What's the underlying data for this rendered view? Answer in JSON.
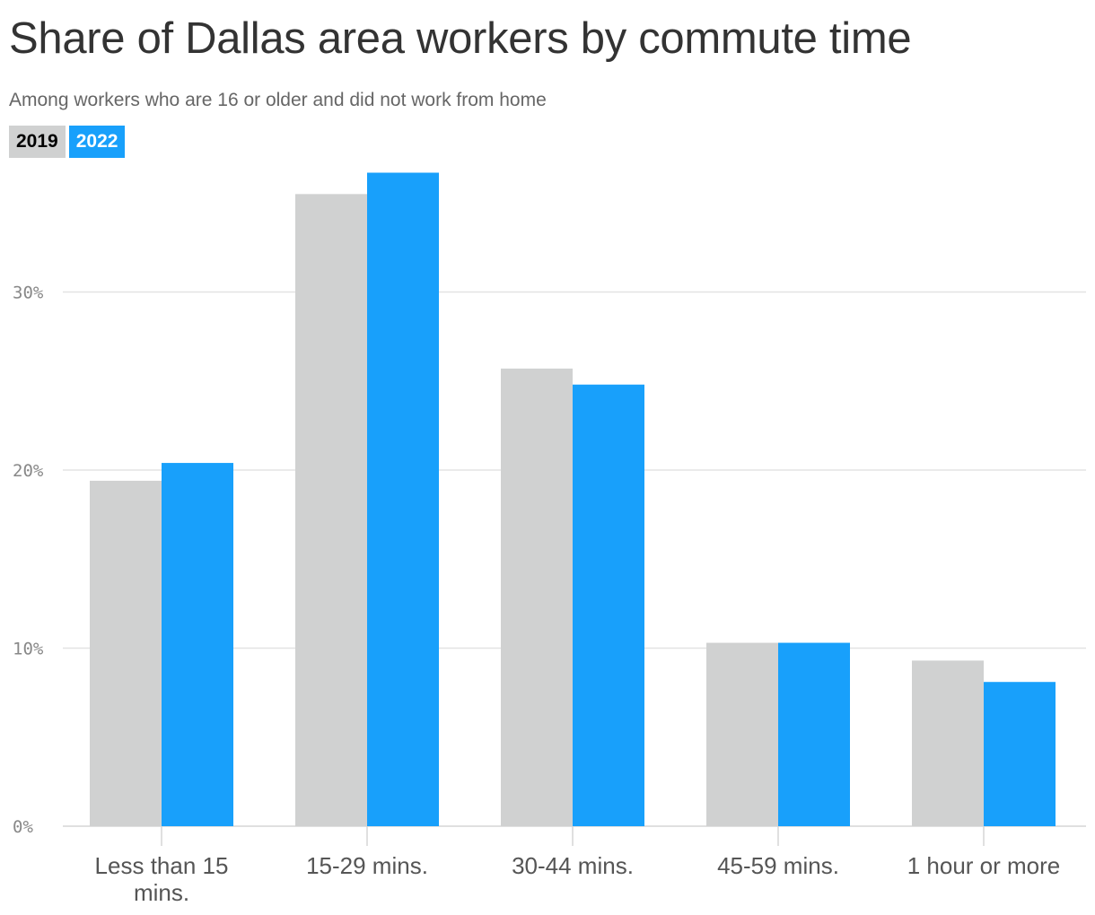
{
  "title": "Share of Dallas area workers by commute time",
  "subtitle": "Among workers who are 16 or older and did not work from home",
  "legend": [
    {
      "label": "2019",
      "color": "#d0d1d1"
    },
    {
      "label": "2022",
      "color": "#18a0fb"
    }
  ],
  "chart_data": {
    "type": "bar",
    "categories": [
      [
        "Less than 15",
        "mins."
      ],
      [
        "15-29 mins."
      ],
      [
        "30-44 mins."
      ],
      [
        "45-59 mins."
      ],
      [
        "1 hour or more"
      ]
    ],
    "series": [
      {
        "name": "2019",
        "color": "#d0d1d1",
        "values": [
          19.4,
          35.5,
          25.7,
          10.3,
          9.3
        ]
      },
      {
        "name": "2022",
        "color": "#18a0fb",
        "values": [
          20.4,
          36.7,
          24.8,
          10.3,
          8.1
        ]
      }
    ],
    "yticks": [
      {
        "value": 0,
        "label": "0%"
      },
      {
        "value": 10,
        "label": "10%"
      },
      {
        "value": 20,
        "label": "20%"
      },
      {
        "value": 30,
        "label": "30%"
      }
    ],
    "ylim": [
      0,
      37
    ],
    "grid": true
  }
}
